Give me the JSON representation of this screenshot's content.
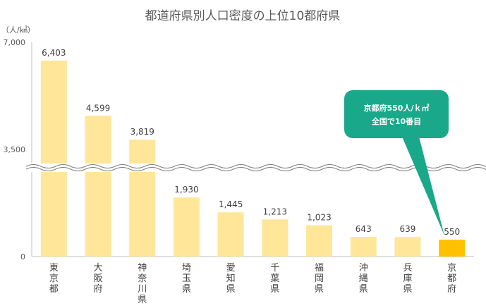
{
  "chart_data": {
    "type": "bar",
    "title": "都道府県別人口密度の上位10都府県",
    "unit_label": "（人/㎢）",
    "yticks": [
      "7,000",
      "3,500",
      "0"
    ],
    "y_axis_break": true,
    "categories": [
      "東京都",
      "大阪府",
      "神奈川県",
      "埼玉県",
      "愛知県",
      "千葉県",
      "福岡県",
      "沖縄県",
      "兵庫県",
      "京都府"
    ],
    "values": [
      6403,
      4599,
      3819,
      1930,
      1445,
      1213,
      1023,
      643,
      639,
      550
    ],
    "value_labels": [
      "6,403",
      "4,599",
      "3,819",
      "1,930",
      "1,445",
      "1,213",
      "1,023",
      "643",
      "639",
      "550"
    ],
    "highlight": "京都府",
    "callout": {
      "line1": "京都府550人/ｋ㎡",
      "line2": "全国で10番目"
    },
    "colors": {
      "bar": "#FFE699",
      "highlight": "#FFC000",
      "callout": "#1AA88A",
      "axis": "#BFBFBF"
    },
    "grid": false,
    "legend": "none"
  }
}
